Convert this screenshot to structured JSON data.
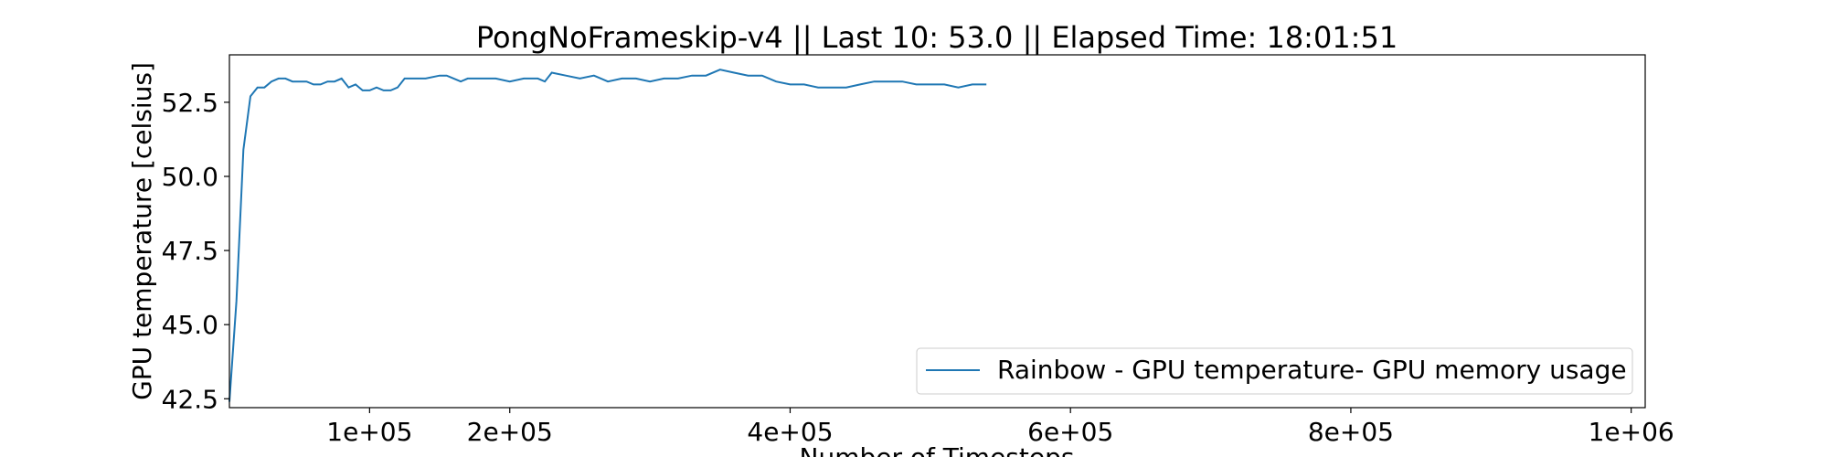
{
  "chart_data": {
    "type": "line",
    "title": "PongNoFrameskip-v4 || Last 10: 53.0 || Elapsed Time: 18:01:51",
    "xlabel": "Number of Timesteps",
    "ylabel": "GPU temperature [celsius]",
    "xlim": [
      0,
      1010000
    ],
    "ylim": [
      42.2,
      54.1
    ],
    "x_ticks": [
      100000,
      200000,
      400000,
      600000,
      800000,
      1000000
    ],
    "x_tick_labels": [
      "1e+05",
      "2e+05",
      "4e+05",
      "6e+05",
      "8e+05",
      "1e+06"
    ],
    "y_ticks": [
      42.5,
      45.0,
      47.5,
      50.0,
      52.5
    ],
    "y_tick_labels": [
      "42.5",
      "45.0",
      "47.5",
      "50.0",
      "52.5"
    ],
    "grid": false,
    "legend_position": "lower-right",
    "series": [
      {
        "name": "Rainbow - GPU temperature- GPU memory usage",
        "color": "#1f77b4",
        "x": [
          0,
          5000,
          10000,
          15000,
          20000,
          25000,
          30000,
          35000,
          40000,
          45000,
          50000,
          55000,
          60000,
          65000,
          70000,
          75000,
          80000,
          85000,
          90000,
          95000,
          100000,
          105000,
          110000,
          115000,
          120000,
          125000,
          130000,
          140000,
          150000,
          155000,
          160000,
          165000,
          170000,
          180000,
          190000,
          200000,
          210000,
          220000,
          225000,
          230000,
          240000,
          250000,
          260000,
          270000,
          280000,
          290000,
          300000,
          310000,
          320000,
          330000,
          340000,
          350000,
          360000,
          370000,
          380000,
          390000,
          400000,
          410000,
          420000,
          430000,
          440000,
          450000,
          460000,
          470000,
          480000,
          490000,
          500000,
          510000,
          520000,
          530000,
          540000
        ],
        "y": [
          42.4,
          45.8,
          50.9,
          52.7,
          53.0,
          53.0,
          53.2,
          53.3,
          53.3,
          53.2,
          53.2,
          53.2,
          53.1,
          53.1,
          53.2,
          53.2,
          53.3,
          53.0,
          53.1,
          52.9,
          52.9,
          53.0,
          52.9,
          52.9,
          53.0,
          53.3,
          53.3,
          53.3,
          53.4,
          53.4,
          53.3,
          53.2,
          53.3,
          53.3,
          53.3,
          53.2,
          53.3,
          53.3,
          53.2,
          53.5,
          53.4,
          53.3,
          53.4,
          53.2,
          53.3,
          53.3,
          53.2,
          53.3,
          53.3,
          53.4,
          53.4,
          53.6,
          53.5,
          53.4,
          53.4,
          53.2,
          53.1,
          53.1,
          53.0,
          53.0,
          53.0,
          53.1,
          53.2,
          53.2,
          53.2,
          53.1,
          53.1,
          53.1,
          53.0,
          53.1,
          53.1
        ]
      }
    ]
  }
}
